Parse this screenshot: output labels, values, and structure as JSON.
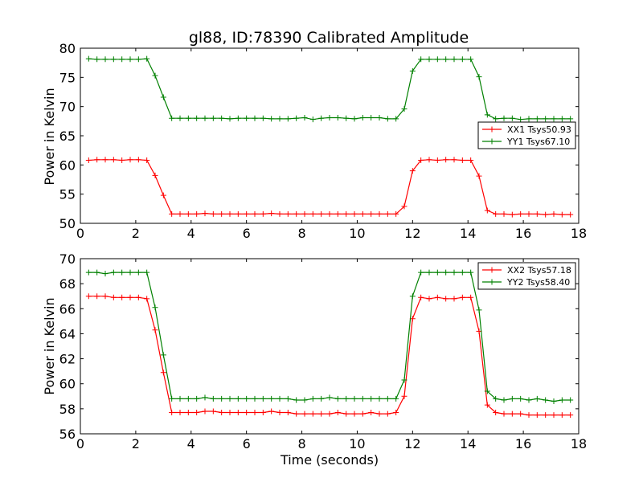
{
  "chart_data": [
    {
      "type": "line",
      "title": "gl88, ID:78390 Calibrated Amplitude",
      "xlabel": "",
      "ylabel": "Power in Kelvin",
      "xlim": [
        0,
        18
      ],
      "ylim": [
        50,
        80
      ],
      "xticks": [
        0,
        2,
        4,
        6,
        8,
        10,
        12,
        14,
        16,
        18
      ],
      "yticks": [
        50,
        55,
        60,
        65,
        70,
        75,
        80
      ],
      "grid": false,
      "legend": "center-right",
      "x": [
        0.3,
        0.6,
        0.9,
        1.2,
        1.5,
        1.8,
        2.1,
        2.4,
        2.7,
        3.0,
        3.3,
        3.6,
        3.9,
        4.2,
        4.5,
        4.8,
        5.1,
        5.4,
        5.7,
        6.0,
        6.3,
        6.6,
        6.9,
        7.2,
        7.5,
        7.8,
        8.1,
        8.4,
        8.7,
        9.0,
        9.3,
        9.6,
        9.9,
        10.2,
        10.5,
        10.8,
        11.1,
        11.4,
        11.7,
        12.0,
        12.3,
        12.6,
        12.9,
        13.2,
        13.5,
        13.8,
        14.1,
        14.4,
        14.7,
        15.0,
        15.3,
        15.6,
        15.9,
        16.2,
        16.5,
        16.8,
        17.1,
        17.4,
        17.7
      ],
      "series": [
        {
          "name": "XX1 Tsys50.93",
          "color": "#ff0000",
          "values": [
            60.8,
            60.9,
            60.9,
            60.9,
            60.8,
            60.9,
            60.9,
            60.8,
            58.2,
            54.8,
            51.6,
            51.6,
            51.6,
            51.6,
            51.7,
            51.6,
            51.6,
            51.6,
            51.6,
            51.6,
            51.6,
            51.6,
            51.7,
            51.6,
            51.6,
            51.6,
            51.6,
            51.6,
            51.6,
            51.6,
            51.6,
            51.6,
            51.6,
            51.6,
            51.6,
            51.6,
            51.6,
            51.6,
            52.9,
            59.0,
            60.8,
            60.9,
            60.8,
            60.9,
            60.9,
            60.8,
            60.8,
            58.1,
            52.2,
            51.6,
            51.6,
            51.5,
            51.6,
            51.6,
            51.6,
            51.5,
            51.6,
            51.5,
            51.5
          ]
        },
        {
          "name": "YY1 Tsys67.10",
          "color": "#008000",
          "values": [
            78.2,
            78.1,
            78.1,
            78.1,
            78.1,
            78.1,
            78.1,
            78.2,
            75.3,
            71.6,
            68.0,
            68.0,
            68.0,
            68.0,
            68.0,
            68.0,
            68.0,
            67.9,
            68.0,
            68.0,
            68.0,
            68.0,
            67.9,
            67.9,
            67.9,
            68.0,
            68.1,
            67.8,
            68.0,
            68.1,
            68.1,
            68.0,
            67.9,
            68.1,
            68.1,
            68.1,
            67.9,
            67.9,
            69.6,
            76.1,
            78.1,
            78.1,
            78.1,
            78.1,
            78.1,
            78.1,
            78.1,
            75.1,
            68.6,
            67.9,
            68.0,
            68.0,
            67.8,
            67.9,
            67.9,
            67.9,
            67.9,
            67.9,
            67.9
          ]
        }
      ]
    },
    {
      "type": "line",
      "title": "",
      "xlabel": "Time (seconds)",
      "ylabel": "Power in Kelvin",
      "xlim": [
        0,
        18
      ],
      "ylim": [
        56,
        70
      ],
      "xticks": [
        0,
        2,
        4,
        6,
        8,
        10,
        12,
        14,
        16,
        18
      ],
      "yticks": [
        56,
        58,
        60,
        62,
        64,
        66,
        68,
        70
      ],
      "grid": false,
      "legend": "top-right",
      "x": [
        0.3,
        0.6,
        0.9,
        1.2,
        1.5,
        1.8,
        2.1,
        2.4,
        2.7,
        3.0,
        3.3,
        3.6,
        3.9,
        4.2,
        4.5,
        4.8,
        5.1,
        5.4,
        5.7,
        6.0,
        6.3,
        6.6,
        6.9,
        7.2,
        7.5,
        7.8,
        8.1,
        8.4,
        8.7,
        9.0,
        9.3,
        9.6,
        9.9,
        10.2,
        10.5,
        10.8,
        11.1,
        11.4,
        11.7,
        12.0,
        12.3,
        12.6,
        12.9,
        13.2,
        13.5,
        13.8,
        14.1,
        14.4,
        14.7,
        15.0,
        15.3,
        15.6,
        15.9,
        16.2,
        16.5,
        16.8,
        17.1,
        17.4,
        17.7
      ],
      "series": [
        {
          "name": "XX2 Tsys57.18",
          "color": "#ff0000",
          "values": [
            67.0,
            67.0,
            67.0,
            66.9,
            66.9,
            66.9,
            66.9,
            66.8,
            64.3,
            60.9,
            57.7,
            57.7,
            57.7,
            57.7,
            57.8,
            57.8,
            57.7,
            57.7,
            57.7,
            57.7,
            57.7,
            57.7,
            57.8,
            57.7,
            57.7,
            57.6,
            57.6,
            57.6,
            57.6,
            57.6,
            57.7,
            57.6,
            57.6,
            57.6,
            57.7,
            57.6,
            57.6,
            57.7,
            59.0,
            65.2,
            66.9,
            66.8,
            66.9,
            66.8,
            66.8,
            66.9,
            66.9,
            64.2,
            58.3,
            57.7,
            57.6,
            57.6,
            57.6,
            57.5,
            57.5,
            57.5,
            57.5,
            57.5,
            57.5
          ]
        },
        {
          "name": "YY2 Tsys58.40",
          "color": "#008000",
          "values": [
            68.9,
            68.9,
            68.8,
            68.9,
            68.9,
            68.9,
            68.9,
            68.9,
            66.1,
            62.3,
            58.8,
            58.8,
            58.8,
            58.8,
            58.9,
            58.8,
            58.8,
            58.8,
            58.8,
            58.8,
            58.8,
            58.8,
            58.8,
            58.8,
            58.8,
            58.7,
            58.7,
            58.8,
            58.8,
            58.9,
            58.8,
            58.8,
            58.8,
            58.8,
            58.8,
            58.8,
            58.8,
            58.8,
            60.3,
            67.0,
            68.9,
            68.9,
            68.9,
            68.9,
            68.9,
            68.9,
            68.9,
            65.9,
            59.4,
            58.8,
            58.7,
            58.8,
            58.8,
            58.7,
            58.8,
            58.7,
            58.6,
            58.7,
            58.7
          ]
        }
      ]
    }
  ]
}
